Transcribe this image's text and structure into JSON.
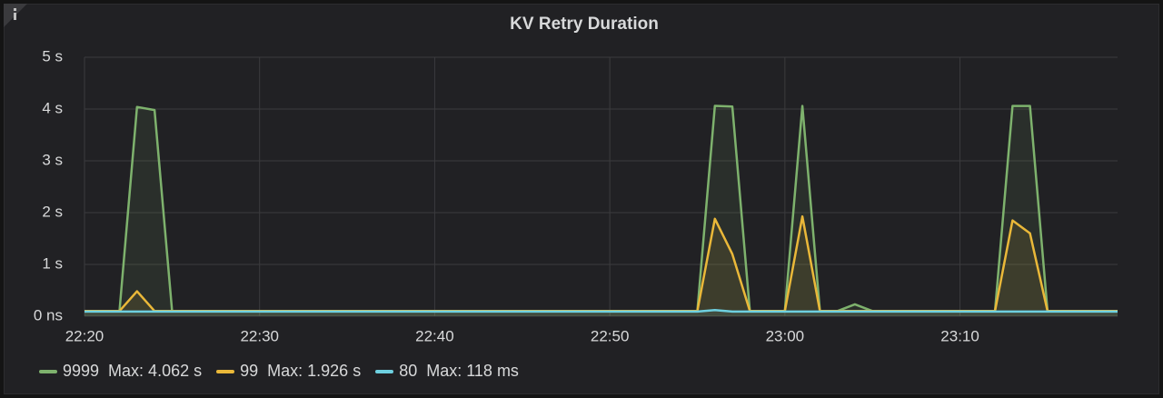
{
  "chart_data": {
    "type": "line",
    "title": "KV Retry Duration",
    "x": [
      "22:20",
      "22:21",
      "22:22",
      "22:23",
      "22:24",
      "22:25",
      "22:26",
      "22:27",
      "22:28",
      "22:29",
      "22:30",
      "22:31",
      "22:32",
      "22:33",
      "22:34",
      "22:35",
      "22:36",
      "22:37",
      "22:38",
      "22:39",
      "22:40",
      "22:41",
      "22:42",
      "22:43",
      "22:44",
      "22:45",
      "22:46",
      "22:47",
      "22:48",
      "22:49",
      "22:50",
      "22:51",
      "22:52",
      "22:53",
      "22:54",
      "22:55",
      "22:56",
      "22:57",
      "22:58",
      "22:59",
      "23:00",
      "23:01",
      "23:02",
      "23:03",
      "23:04",
      "23:05",
      "23:06",
      "23:07",
      "23:08",
      "23:09",
      "23:10",
      "23:11",
      "23:12",
      "23:13",
      "23:14",
      "23:15",
      "23:16",
      "23:17",
      "23:18",
      "23:19"
    ],
    "xlim": [
      "22:20",
      "23:19"
    ],
    "xticks": [
      "22:20",
      "22:30",
      "22:40",
      "22:50",
      "23:00",
      "23:10"
    ],
    "ylim": [
      0,
      5
    ],
    "yticks": [
      {
        "value": 0,
        "label": "0 ns"
      },
      {
        "value": 1,
        "label": "1 s"
      },
      {
        "value": 2,
        "label": "2 s"
      },
      {
        "value": 3,
        "label": "3 s"
      },
      {
        "value": 4,
        "label": "4 s"
      },
      {
        "value": 5,
        "label": "5 s"
      }
    ],
    "grid": true,
    "series": [
      {
        "name": "9999",
        "color": "#7eb26d",
        "legend_max": "Max: 4.062 s",
        "values": [
          0.1,
          0.1,
          0.1,
          4.04,
          3.98,
          0.1,
          0.1,
          0.1,
          0.1,
          0.1,
          0.1,
          0.1,
          0.1,
          0.1,
          0.1,
          0.1,
          0.1,
          0.1,
          0.1,
          0.1,
          0.1,
          0.1,
          0.1,
          0.1,
          0.1,
          0.1,
          0.1,
          0.1,
          0.1,
          0.1,
          0.1,
          0.1,
          0.1,
          0.1,
          0.1,
          0.1,
          4.062,
          4.05,
          0.1,
          0.1,
          0.1,
          4.06,
          0.1,
          0.1,
          0.23,
          0.1,
          0.1,
          0.1,
          0.1,
          0.1,
          0.1,
          0.1,
          0.1,
          4.06,
          4.06,
          0.1,
          0.1,
          0.1,
          0.1,
          0.1
        ]
      },
      {
        "name": "99",
        "color": "#eab839",
        "legend_max": "Max: 1.926 s",
        "values": [
          0.1,
          0.1,
          0.1,
          0.48,
          0.1,
          0.1,
          0.1,
          0.1,
          0.1,
          0.1,
          0.1,
          0.1,
          0.1,
          0.1,
          0.1,
          0.1,
          0.1,
          0.1,
          0.1,
          0.1,
          0.1,
          0.1,
          0.1,
          0.1,
          0.1,
          0.1,
          0.1,
          0.1,
          0.1,
          0.1,
          0.1,
          0.1,
          0.1,
          0.1,
          0.1,
          0.1,
          1.88,
          1.2,
          0.1,
          0.1,
          0.1,
          1.926,
          0.1,
          0.1,
          0.1,
          0.1,
          0.1,
          0.1,
          0.1,
          0.1,
          0.1,
          0.1,
          0.1,
          1.85,
          1.6,
          0.1,
          0.1,
          0.1,
          0.1,
          0.1
        ]
      },
      {
        "name": "80",
        "color": "#6ed0e0",
        "legend_max": "Max: 118 ms",
        "values": [
          0.09,
          0.09,
          0.09,
          0.09,
          0.09,
          0.09,
          0.09,
          0.09,
          0.09,
          0.09,
          0.09,
          0.09,
          0.09,
          0.09,
          0.09,
          0.09,
          0.09,
          0.09,
          0.09,
          0.09,
          0.09,
          0.09,
          0.09,
          0.09,
          0.09,
          0.09,
          0.09,
          0.09,
          0.09,
          0.09,
          0.09,
          0.09,
          0.09,
          0.09,
          0.09,
          0.09,
          0.118,
          0.09,
          0.09,
          0.09,
          0.09,
          0.09,
          0.09,
          0.09,
          0.09,
          0.09,
          0.09,
          0.09,
          0.09,
          0.09,
          0.09,
          0.09,
          0.09,
          0.09,
          0.09,
          0.09,
          0.09,
          0.09,
          0.09,
          0.09
        ]
      }
    ]
  }
}
